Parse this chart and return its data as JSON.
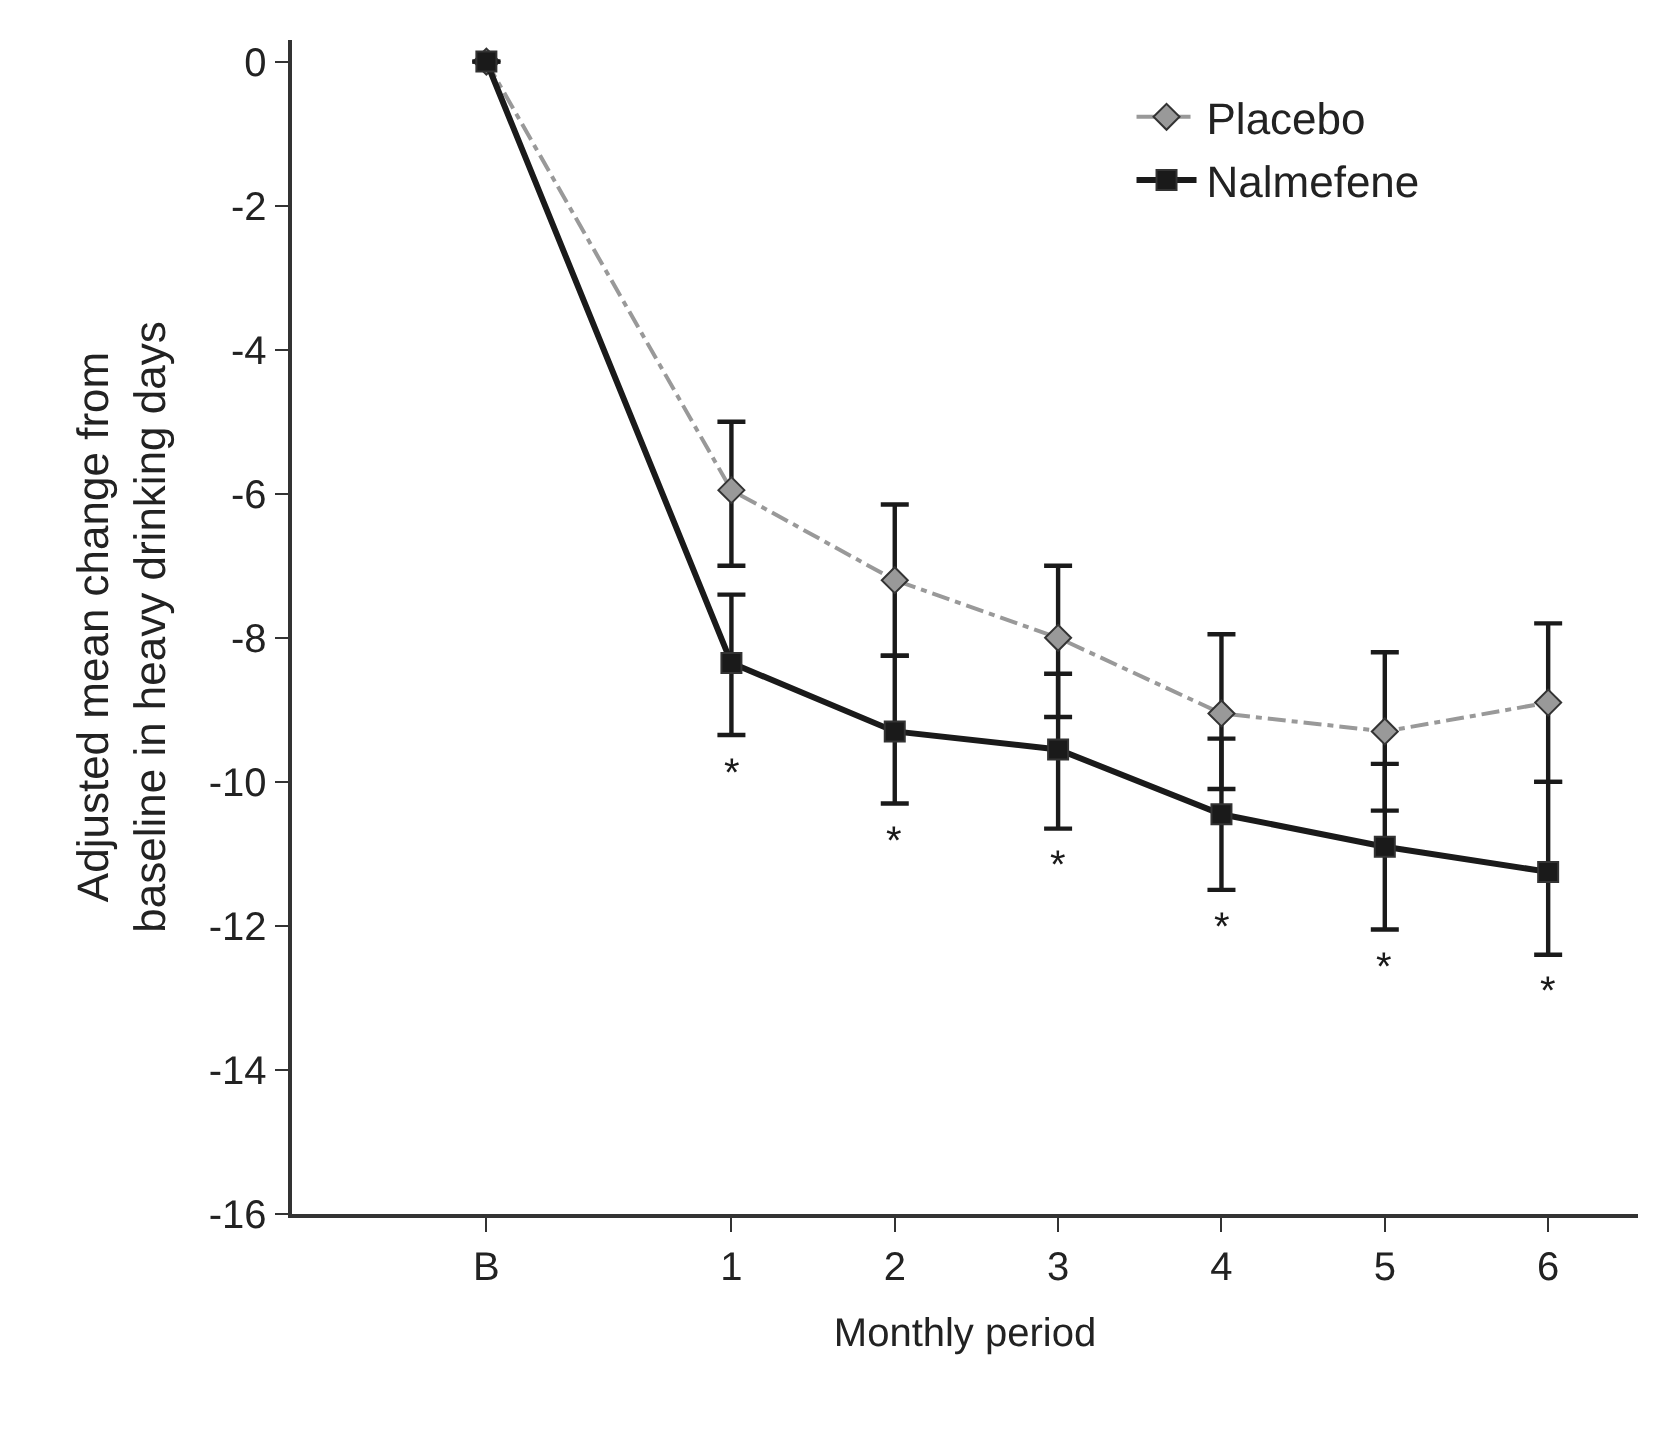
{
  "chart_data": {
    "type": "line",
    "xlabel": "Monthly period",
    "ylabel": "Adjusted mean change from\nbaseline in heavy drinking days",
    "x": [
      -0.5,
      1,
      2,
      3,
      4,
      5,
      6
    ],
    "xlim": [
      -1.69,
      6.55
    ],
    "xticks": [
      {
        "value": -0.5,
        "label": "B"
      },
      1,
      2,
      3,
      4,
      5,
      6
    ],
    "ylim": [
      -16,
      0.3
    ],
    "yticks": [
      0,
      -2,
      -4,
      -6,
      -8,
      -10,
      -12,
      -14,
      -16
    ],
    "series": [
      {
        "name": "Placebo",
        "color": "#999999",
        "marker": "diamond",
        "line_style": "dashed",
        "values": [
          0,
          -5.95,
          -7.2,
          -8.0,
          -9.05,
          -9.3,
          -8.9
        ],
        "errors": [
          null,
          [
            -7.0,
            -5.0
          ],
          [
            -8.25,
            -6.15
          ],
          [
            -9.1,
            -7.0
          ],
          [
            -10.1,
            -7.95
          ],
          [
            -10.4,
            -8.2
          ],
          [
            -10.0,
            -7.8
          ]
        ]
      },
      {
        "name": "Nalmefene",
        "color": "#1a1a1a",
        "marker": "square",
        "line_style": "solid",
        "values": [
          0,
          -8.35,
          -9.3,
          -9.55,
          -10.45,
          -10.9,
          -11.25
        ],
        "errors": [
          null,
          [
            -9.35,
            -7.4
          ],
          [
            -10.3,
            -8.25
          ],
          [
            -10.65,
            -8.5
          ],
          [
            -11.5,
            -9.4
          ],
          [
            -12.05,
            -9.75
          ],
          [
            -12.4,
            -10.0
          ]
        ]
      }
    ],
    "annotations": [
      "*",
      "*",
      "*",
      "*",
      "*",
      "*"
    ],
    "legend": "top right"
  }
}
